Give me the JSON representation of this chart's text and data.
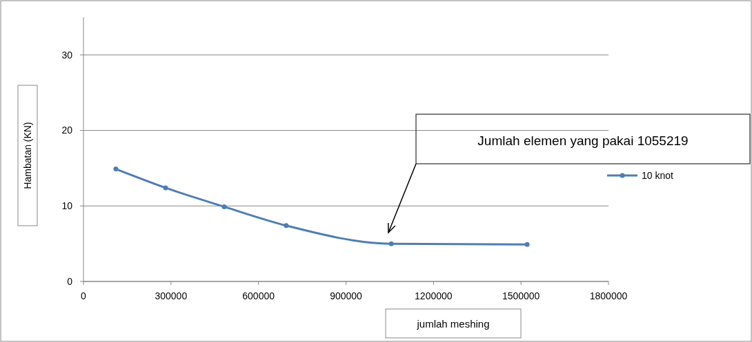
{
  "chart_data": {
    "type": "line",
    "xlabel": "jumlah meshing",
    "ylabel": "Hambatan (KN)",
    "series": [
      {
        "name": "10 knot",
        "color": "#4a7ebb",
        "x": [
          111000,
          281500,
          482500,
          695000,
          1055219,
          1521000
        ],
        "values": [
          14.9,
          12.4,
          9.9,
          7.4,
          5.0,
          4.9
        ]
      }
    ],
    "xlim": [
      0,
      1800000
    ],
    "xticks": [
      0,
      300000,
      600000,
      900000,
      1200000,
      1500000,
      1800000
    ],
    "ylim": [
      0,
      35
    ],
    "yticks": [
      0,
      10,
      20,
      30
    ],
    "grid": "y",
    "legend": "right",
    "marker": "circle",
    "line_style": "solid",
    "annotations": [
      "Jumlah elemen yang pakai 1055219"
    ]
  }
}
